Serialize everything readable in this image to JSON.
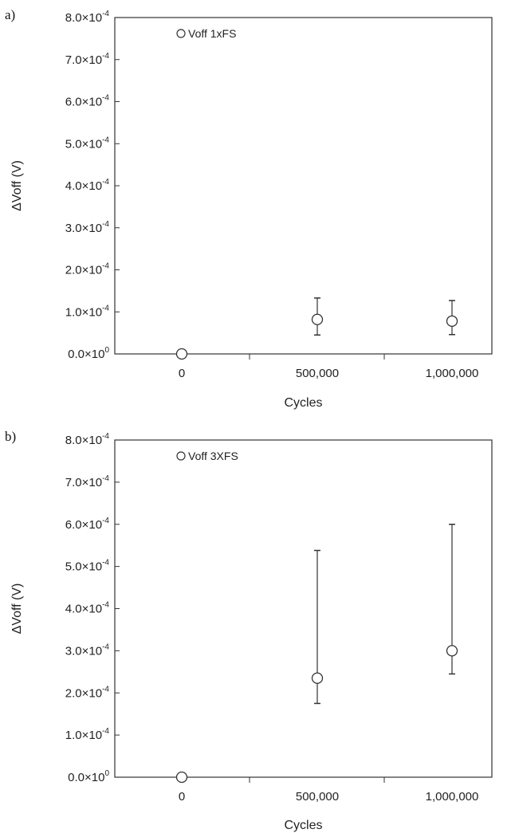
{
  "chart_data": [
    {
      "type": "scatter",
      "panel_label": "a)",
      "xlabel": "Cycles",
      "ylabel": "ΔVoff (V)",
      "ylim": [
        0,
        0.0008
      ],
      "yticks": [
        {
          "value": 0.0008,
          "mantissa": "8.0×10",
          "exp": "-4"
        },
        {
          "value": 0.0007,
          "mantissa": "7.0×10",
          "exp": "-4"
        },
        {
          "value": 0.0006,
          "mantissa": "6.0×10",
          "exp": "-4"
        },
        {
          "value": 0.0005,
          "mantissa": "5.0×10",
          "exp": "-4"
        },
        {
          "value": 0.0004,
          "mantissa": "4.0×10",
          "exp": "-4"
        },
        {
          "value": 0.0003,
          "mantissa": "3.0×10",
          "exp": "-4"
        },
        {
          "value": 0.0002,
          "mantissa": "2.0×10",
          "exp": "-4"
        },
        {
          "value": 0.0001,
          "mantissa": "1.0×10",
          "exp": "-4"
        },
        {
          "value": 0,
          "mantissa": "0.0×10",
          "exp": "0"
        }
      ],
      "categories": [
        "0",
        "500,000",
        "1,000,000"
      ],
      "legend": {
        "label": "Voff 1xFS",
        "position": "top-left"
      },
      "series": [
        {
          "name": "Voff 1xFS",
          "points": [
            {
              "x": "0",
              "y": 0,
              "err_low": 0,
              "err_high": 0
            },
            {
              "x": "500,000",
              "y": 8.2e-05,
              "err_low": 4.5e-05,
              "err_high": 0.000133
            },
            {
              "x": "1,000,000",
              "y": 7.8e-05,
              "err_low": 4.6e-05,
              "err_high": 0.000127
            }
          ]
        }
      ]
    },
    {
      "type": "scatter",
      "panel_label": "b)",
      "xlabel": "Cycles",
      "ylabel": "ΔVoff (V)",
      "ylim": [
        0,
        0.0008
      ],
      "yticks": [
        {
          "value": 0.0008,
          "mantissa": "8.0×10",
          "exp": "-4"
        },
        {
          "value": 0.0007,
          "mantissa": "7.0×10",
          "exp": "-4"
        },
        {
          "value": 0.0006,
          "mantissa": "6.0×10",
          "exp": "-4"
        },
        {
          "value": 0.0005,
          "mantissa": "5.0×10",
          "exp": "-4"
        },
        {
          "value": 0.0004,
          "mantissa": "4.0×10",
          "exp": "-4"
        },
        {
          "value": 0.0003,
          "mantissa": "3.0×10",
          "exp": "-4"
        },
        {
          "value": 0.0002,
          "mantissa": "2.0×10",
          "exp": "-4"
        },
        {
          "value": 0.0001,
          "mantissa": "1.0×10",
          "exp": "-4"
        },
        {
          "value": 0,
          "mantissa": "0.0×10",
          "exp": "0"
        }
      ],
      "categories": [
        "0",
        "500,000",
        "1,000,000"
      ],
      "legend": {
        "label": "Voff 3XFS",
        "position": "top-left"
      },
      "series": [
        {
          "name": "Voff 3XFS",
          "points": [
            {
              "x": "0",
              "y": 0,
              "err_low": 0,
              "err_high": 0
            },
            {
              "x": "500,000",
              "y": 0.000235,
              "err_low": 0.000175,
              "err_high": 0.000538
            },
            {
              "x": "1,000,000",
              "y": 0.0003,
              "err_low": 0.000245,
              "err_high": 0.0006
            }
          ]
        }
      ]
    }
  ]
}
